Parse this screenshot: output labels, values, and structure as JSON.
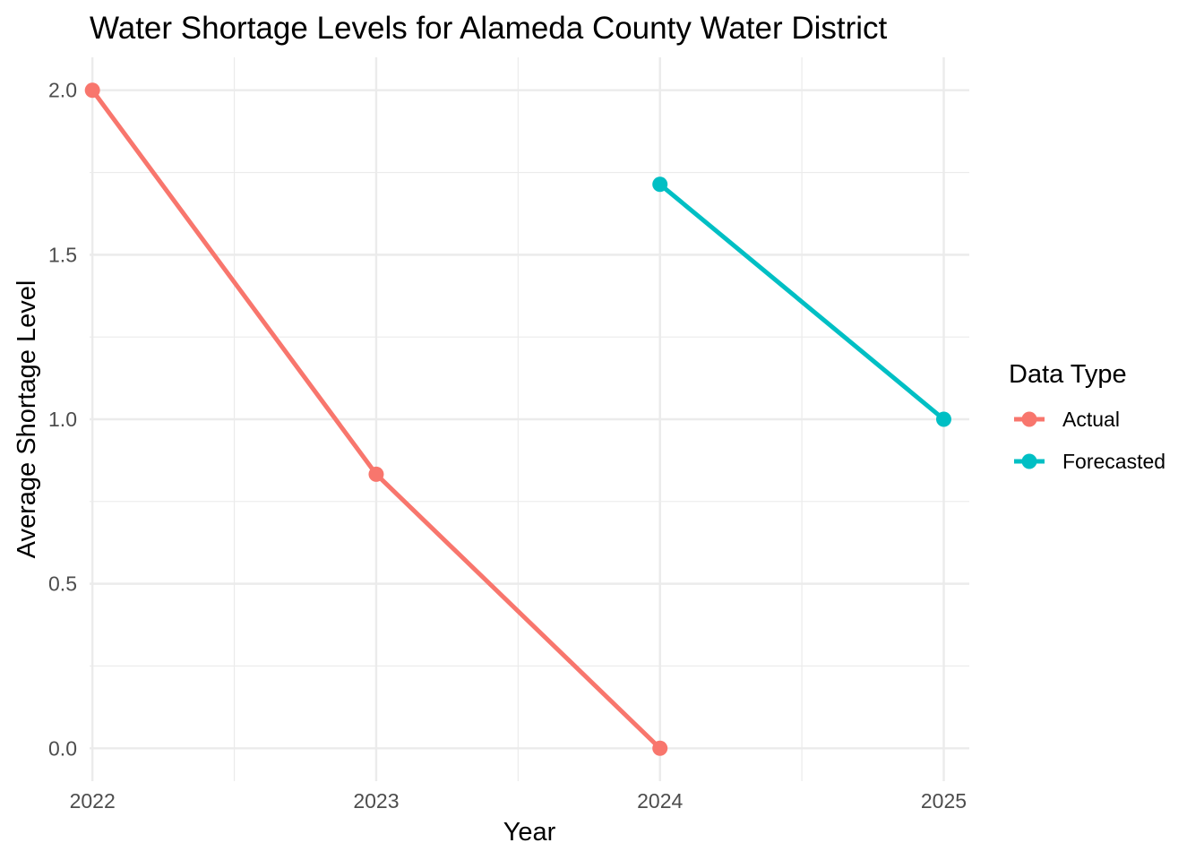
{
  "chart_data": {
    "type": "line",
    "title": "Water Shortage Levels for Alameda County Water District",
    "xlabel": "Year",
    "ylabel": "Average Shortage Level",
    "xlim": [
      2021.99,
      2025.09
    ],
    "ylim": [
      -0.1,
      2.1
    ],
    "x_ticks": [
      2022,
      2023,
      2024,
      2025
    ],
    "x_tick_labels": [
      "2022",
      "2023",
      "2024",
      "2025"
    ],
    "y_ticks": [
      0.0,
      0.5,
      1.0,
      1.5,
      2.0
    ],
    "y_tick_labels": [
      "0.0",
      "0.5",
      "1.0",
      "1.5",
      "2.0"
    ],
    "grid": true,
    "legend": {
      "title": "Data Type",
      "placement": "right"
    },
    "series": [
      {
        "name": "Actual",
        "color": "#F8766D",
        "x": [
          2022,
          2023,
          2024
        ],
        "y": [
          2.0,
          0.833,
          0.0
        ]
      },
      {
        "name": "Forecasted",
        "color": "#00BFC4",
        "x": [
          2024,
          2025
        ],
        "y": [
          1.714,
          1.0
        ]
      }
    ]
  }
}
